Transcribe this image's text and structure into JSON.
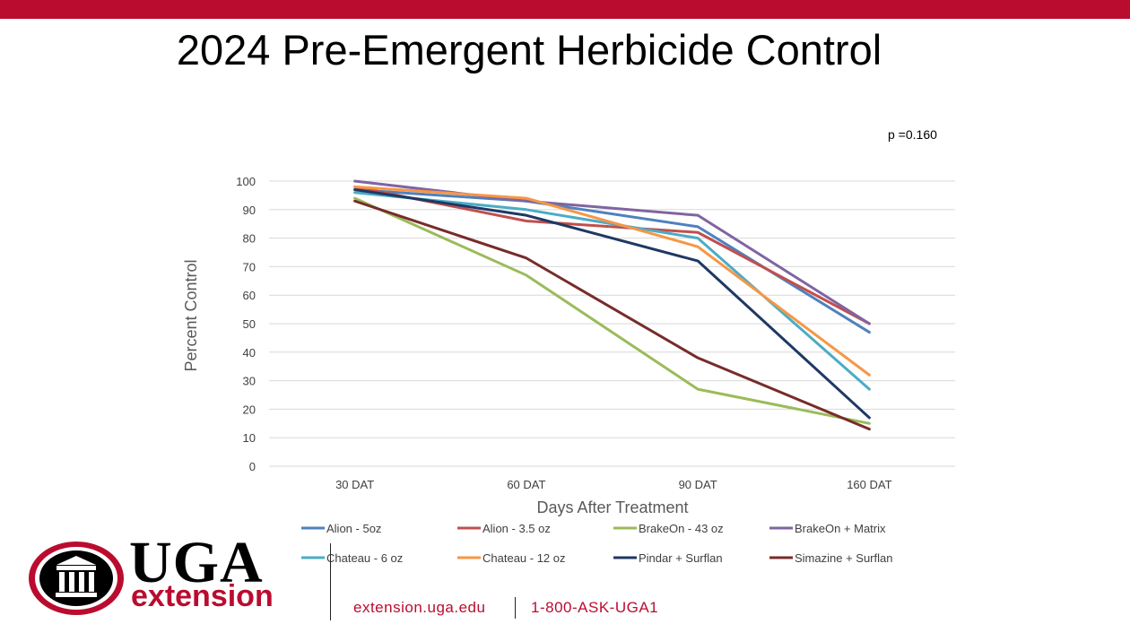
{
  "slide": {
    "title": "2024 Pre-Emergent Herbicide Control",
    "p_value": "p =0.160",
    "accent_color": "#ba0c2f"
  },
  "chart_data": {
    "type": "line",
    "title": "",
    "xlabel": "Days After Treatment",
    "ylabel": "Percent Control",
    "categories": [
      "30 DAT",
      "60 DAT",
      "90 DAT",
      "160 DAT"
    ],
    "ylim": [
      0,
      100
    ],
    "yticks": [
      0,
      10,
      20,
      30,
      40,
      50,
      60,
      70,
      80,
      90,
      100
    ],
    "grid": true,
    "legend_position": "bottom",
    "series": [
      {
        "name": "Alion - 5oz",
        "color": "#4f81bd",
        "values": [
          97,
          93,
          84,
          47
        ]
      },
      {
        "name": "Alion - 3.5 oz",
        "color": "#c0504d",
        "values": [
          98,
          86,
          82,
          50
        ]
      },
      {
        "name": "BrakeOn - 43 oz",
        "color": "#9bbb59",
        "values": [
          94,
          67,
          27,
          15
        ]
      },
      {
        "name": "BrakeOn + Matrix",
        "color": "#8064a2",
        "values": [
          100,
          93,
          88,
          50
        ]
      },
      {
        "name": "Chateau - 6 oz",
        "color": "#4bacc6",
        "values": [
          96,
          90,
          80,
          27
        ]
      },
      {
        "name": "Chateau - 12 oz",
        "color": "#f79646",
        "values": [
          98,
          94,
          77,
          32
        ]
      },
      {
        "name": "Pindar + Surflan",
        "color": "#1f3864",
        "values": [
          97,
          88,
          72,
          17
        ]
      },
      {
        "name": "Simazine + Surflan",
        "color": "#772c2a",
        "values": [
          93,
          73,
          38,
          13
        ]
      }
    ]
  },
  "footer": {
    "logo_text": "UGA",
    "logo_subtext": "extension",
    "website": "extension.uga.edu",
    "phone": "1-800-ASK-UGA1"
  }
}
